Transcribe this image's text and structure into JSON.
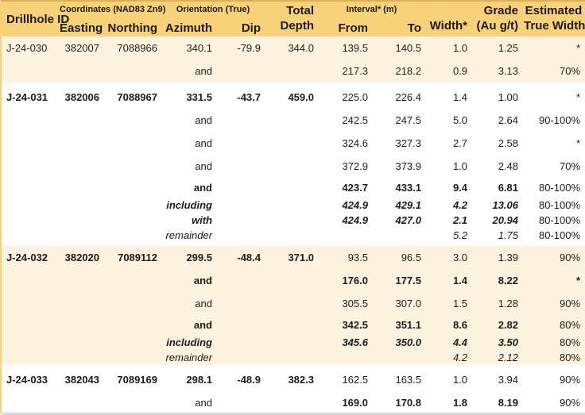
{
  "colors": {
    "header_gold": "#f8d178",
    "header_top_line": "#dfae54",
    "cream_band": "#fdf3df",
    "white_band": "#ffffff",
    "text": "#1c1c1c"
  },
  "header": {
    "drillhole_id": "Drillhole ID",
    "coordinates_group": "Coordinates (NAD83 Zn9)",
    "easting": "Easting",
    "northing": "Northing",
    "orientation_group": "Orientation (True)",
    "azimuth": "Azimuth",
    "dip": "Dip",
    "total_line1": "Total",
    "total_line2": "Depth",
    "interval_group": "Interval* (m)",
    "from": "From",
    "to": "To",
    "width": "Width*",
    "grade_line1": "Grade",
    "grade_line2": "(Au g/t)",
    "etw_line1": "Estimated",
    "etw_line2": "True Width"
  },
  "table": {
    "column_keys": [
      "drillhole_id",
      "easting",
      "northing",
      "azimuth",
      "dip",
      "total_depth",
      "from",
      "to",
      "width",
      "grade",
      "estimated_true_width"
    ],
    "groups": [
      {
        "bg": "cream",
        "rows": [
          {
            "cells": [
              "J-24-030",
              "382007",
              "7088966",
              "340.1",
              "-79.9",
              "344.0",
              "139.5",
              "140.5",
              "1.0",
              "1.25",
              "*"
            ],
            "info": "r",
            "num": "r",
            "etw": "r",
            "h": "main"
          },
          {
            "cells": [
              "",
              "",
              "",
              "and",
              "",
              "",
              "217.3",
              "218.2",
              "0.9",
              "3.13",
              "70%"
            ],
            "info": "r",
            "num": "r",
            "etw": "r",
            "h": "main"
          }
        ]
      },
      {
        "bg": "white",
        "rows": [
          {
            "cells": [
              "J-24-031",
              "382006",
              "7088967",
              "331.5",
              "-43.7",
              "459.0",
              "225.0",
              "226.4",
              "1.4",
              "1.00",
              "*"
            ],
            "info": "b",
            "num": "r",
            "etw": "r",
            "h": "main"
          },
          {
            "cells": [
              "",
              "",
              "",
              "and",
              "",
              "",
              "242.5",
              "247.5",
              "5.0",
              "2.64",
              "90-100%"
            ],
            "info": "r",
            "num": "r",
            "etw": "r",
            "h": "main"
          },
          {
            "cells": [
              "",
              "",
              "",
              "and",
              "",
              "",
              "324.6",
              "327.3",
              "2.7",
              "2.58",
              "*"
            ],
            "info": "r",
            "num": "r",
            "etw": "r",
            "h": "main"
          },
          {
            "cells": [
              "",
              "",
              "",
              "and",
              "",
              "",
              "372.9",
              "373.9",
              "1.0",
              "2.48",
              "70%"
            ],
            "info": "r",
            "num": "r",
            "etw": "r",
            "h": "main"
          },
          {
            "cells": [
              "",
              "",
              "",
              "and",
              "",
              "",
              "423.7",
              "433.1",
              "9.4",
              "6.81",
              "80-100%"
            ],
            "info": "b",
            "num": "b",
            "etw": "r",
            "h": "tight"
          },
          {
            "cells": [
              "",
              "",
              "",
              "including",
              "",
              "",
              "424.9",
              "429.1",
              "4.2",
              "13.06",
              "80-100%"
            ],
            "info": "bi",
            "num": "bi",
            "etw": "r",
            "h": "sub"
          },
          {
            "cells": [
              "",
              "",
              "",
              "with",
              "",
              "",
              "424.9",
              "427.0",
              "2.1",
              "20.94",
              "80-100%"
            ],
            "info": "bi",
            "num": "bi",
            "etw": "r",
            "h": "sub"
          },
          {
            "cells": [
              "",
              "",
              "",
              "remainder",
              "",
              "",
              "",
              "",
              "5.2",
              "1.75",
              "80-100%"
            ],
            "info": "i",
            "num": "i",
            "etw": "r",
            "h": "sub"
          }
        ]
      },
      {
        "bg": "cream",
        "rows": [
          {
            "cells": [
              "J-24-032",
              "382020",
              "7089112",
              "299.5",
              "-48.4",
              "371.0",
              "93.5",
              "96.5",
              "3.0",
              "1.39",
              "90%"
            ],
            "info": "b",
            "num": "r",
            "etw": "r",
            "h": "main"
          },
          {
            "cells": [
              "",
              "",
              "",
              "and",
              "",
              "",
              "176.0",
              "177.5",
              "1.4",
              "8.22",
              "*"
            ],
            "info": "b",
            "num": "b",
            "etw": "b",
            "h": "main"
          },
          {
            "cells": [
              "",
              "",
              "",
              "and",
              "",
              "",
              "305.5",
              "307.0",
              "1.5",
              "1.28",
              "90%"
            ],
            "info": "r",
            "num": "r",
            "etw": "r",
            "h": "main"
          },
          {
            "cells": [
              "",
              "",
              "",
              "and",
              "",
              "",
              "342.5",
              "351.1",
              "8.6",
              "2.82",
              "80%"
            ],
            "info": "b",
            "num": "b",
            "etw": "r",
            "h": "tight"
          },
          {
            "cells": [
              "",
              "",
              "",
              "including",
              "",
              "",
              "345.6",
              "350.0",
              "4.4",
              "3.50",
              "80%"
            ],
            "info": "bi",
            "num": "bi",
            "etw": "r",
            "h": "sub"
          },
          {
            "cells": [
              "",
              "",
              "",
              "remainder",
              "",
              "",
              "",
              "",
              "4.2",
              "2.12",
              "80%"
            ],
            "info": "i",
            "num": "i",
            "etw": "r",
            "h": "sub"
          }
        ]
      },
      {
        "bg": "white",
        "rows": [
          {
            "cells": [
              "J-24-033",
              "382043",
              "7089169",
              "298.1",
              "-48.9",
              "382.3",
              "162.5",
              "163.5",
              "1.0",
              "3.94",
              "90%"
            ],
            "info": "b",
            "num": "r",
            "etw": "r",
            "h": "main"
          },
          {
            "cells": [
              "",
              "",
              "",
              "and",
              "",
              "",
              "169.0",
              "170.8",
              "1.8",
              "8.19",
              "90%"
            ],
            "info": "r",
            "num": "b",
            "etw": "r",
            "h": "main"
          }
        ]
      }
    ]
  }
}
